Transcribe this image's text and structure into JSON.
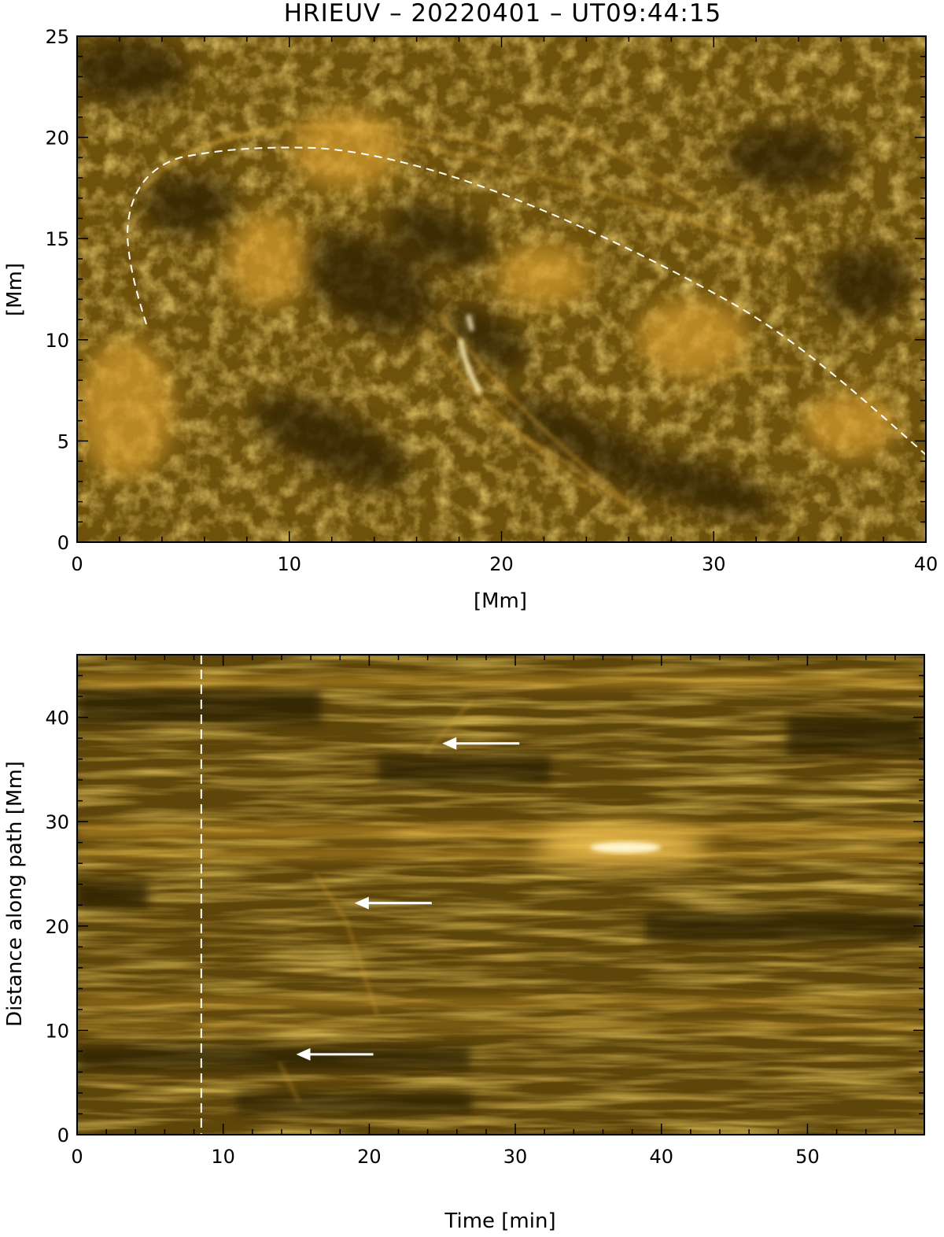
{
  "top_panel": {
    "title": "HRIEUV – 20220401 – UT09:44:15",
    "xlabel": "[Mm]",
    "ylabel": "[Mm]",
    "xlim": [
      0,
      40
    ],
    "ylim": [
      0,
      25
    ],
    "xticks": [
      "0",
      "10",
      "20",
      "30",
      "40"
    ],
    "yticks": [
      "0",
      "5",
      "10",
      "15",
      "20",
      "25"
    ],
    "image_description": "Solar EUV coronal loops image, gold colormap",
    "path_line_style": "dashed white"
  },
  "bottom_panel": {
    "xlabel": "Time [min]",
    "ylabel": "Distance along path [Mm]",
    "xlim": [
      0,
      58
    ],
    "ylim": [
      0,
      46
    ],
    "xticks": [
      "0",
      "10",
      "20",
      "30",
      "40",
      "50"
    ],
    "yticks": [
      "0",
      "10",
      "20",
      "30",
      "40"
    ],
    "image_description": "Time-distance map (x-t plot) along the dashed path, gold colormap",
    "marker_line_time_min": 8.5,
    "arrows": [
      {
        "time_min": 25,
        "distance_mm": 37.5
      },
      {
        "time_min": 19,
        "distance_mm": 22.2
      },
      {
        "time_min": 15,
        "distance_mm": 7.7
      }
    ]
  },
  "colors": {
    "colormap_dark": "#1c1400",
    "colormap_mid": "#7a5a0c",
    "colormap_bright": "#e0a830",
    "colormap_peak": "#fff0c0",
    "annotation": "#ffffff"
  }
}
